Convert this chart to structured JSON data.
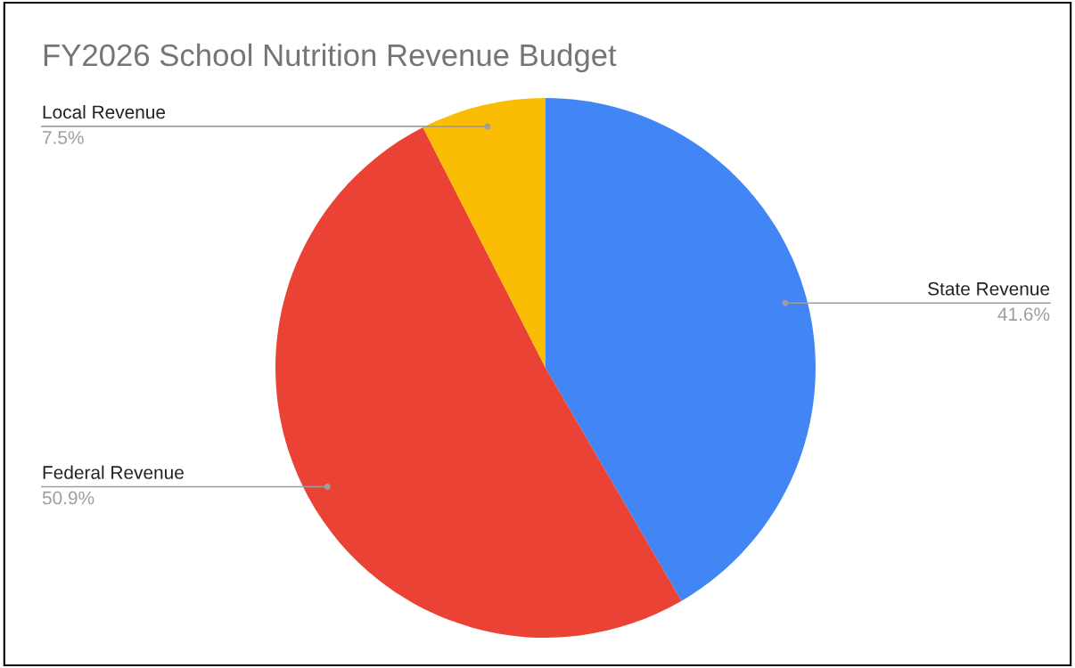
{
  "chart_data": {
    "type": "pie",
    "title": "FY2026 School Nutrition Revenue Budget",
    "categories": [
      "State Revenue",
      "Federal Revenue",
      "Local Revenue"
    ],
    "values": [
      41.6,
      50.9,
      7.5
    ],
    "colors": [
      "#4285f4",
      "#ea4335",
      "#fbbc04"
    ],
    "value_labels": [
      "41.6%",
      "50.9%",
      "7.5%"
    ]
  }
}
